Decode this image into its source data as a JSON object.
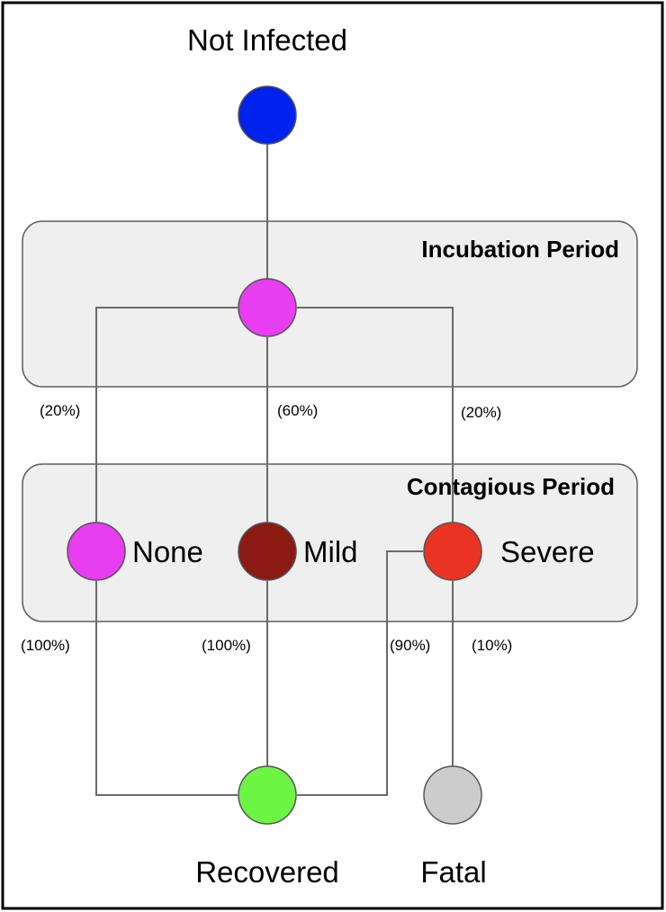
{
  "title": "Not Infected",
  "periods": {
    "incubation": "Incubation Period",
    "contagious": "Contagious Period"
  },
  "nodes": {
    "not_infected": {
      "color": "#0022ee"
    },
    "incubating": {
      "color": "#e63ef0"
    },
    "none": {
      "label": "None",
      "color": "#e63ef0"
    },
    "mild": {
      "label": "Mild",
      "color": "#8b1a12"
    },
    "severe": {
      "label": "Severe",
      "color": "#ea3323"
    },
    "recovered": {
      "label": "Recovered",
      "color": "#6cf542"
    },
    "fatal": {
      "label": "Fatal",
      "color": "#cccccc"
    }
  },
  "transitions": {
    "to_none": "(20%)",
    "to_mild": "(60%)",
    "to_severe": "(20%)",
    "none_recovered": "(100%)",
    "mild_recovered": "(100%)",
    "severe_recovered": "(90%)",
    "severe_fatal": "(10%)"
  }
}
